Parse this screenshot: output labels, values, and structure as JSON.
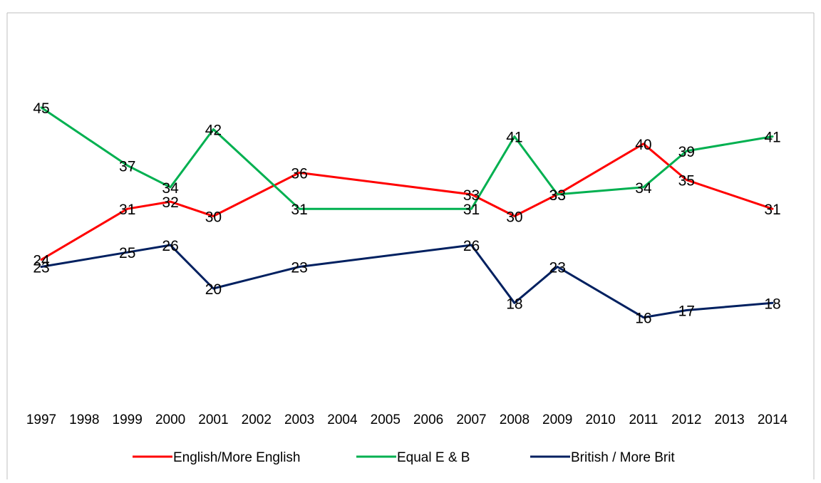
{
  "title_fragment": "",
  "chart_data": {
    "type": "line",
    "title": "",
    "xlabel": "",
    "ylabel": "",
    "categories": [
      "1997",
      "1998",
      "1999",
      "2000",
      "2001",
      "2002",
      "2003",
      "2004",
      "2005",
      "2006",
      "2007",
      "2008",
      "2009",
      "2010",
      "2011",
      "2012",
      "2013",
      "2014"
    ],
    "ylim": [
      0,
      50
    ],
    "grid": false,
    "legend_position": "bottom",
    "series": [
      {
        "name": "English/More English",
        "color": "#ff0000",
        "points": [
          {
            "x": "1997",
            "y": 24
          },
          {
            "x": "1999",
            "y": 31
          },
          {
            "x": "2000",
            "y": 32
          },
          {
            "x": "2001",
            "y": 30
          },
          {
            "x": "2003",
            "y": 36
          },
          {
            "x": "2007",
            "y": 33
          },
          {
            "x": "2008",
            "y": 30
          },
          {
            "x": "2009",
            "y": 33
          },
          {
            "x": "2011",
            "y": 40
          },
          {
            "x": "2012",
            "y": 35
          },
          {
            "x": "2014",
            "y": 31
          }
        ]
      },
      {
        "name": "Equal E & B",
        "color": "#00b050",
        "points": [
          {
            "x": "1997",
            "y": 45
          },
          {
            "x": "1999",
            "y": 37
          },
          {
            "x": "2000",
            "y": 34
          },
          {
            "x": "2001",
            "y": 42
          },
          {
            "x": "2003",
            "y": 31
          },
          {
            "x": "2007",
            "y": 31
          },
          {
            "x": "2008",
            "y": 41
          },
          {
            "x": "2009",
            "y": 33
          },
          {
            "x": "2011",
            "y": 34
          },
          {
            "x": "2012",
            "y": 39
          },
          {
            "x": "2014",
            "y": 41
          }
        ]
      },
      {
        "name": "British / More Brit",
        "color": "#002060",
        "points": [
          {
            "x": "1997",
            "y": 23
          },
          {
            "x": "1999",
            "y": 25
          },
          {
            "x": "2000",
            "y": 26
          },
          {
            "x": "2001",
            "y": 20
          },
          {
            "x": "2003",
            "y": 23
          },
          {
            "x": "2007",
            "y": 26
          },
          {
            "x": "2008",
            "y": 18
          },
          {
            "x": "2009",
            "y": 23
          },
          {
            "x": "2011",
            "y": 16
          },
          {
            "x": "2012",
            "y": 17
          },
          {
            "x": "2014",
            "y": 18
          }
        ]
      }
    ]
  }
}
